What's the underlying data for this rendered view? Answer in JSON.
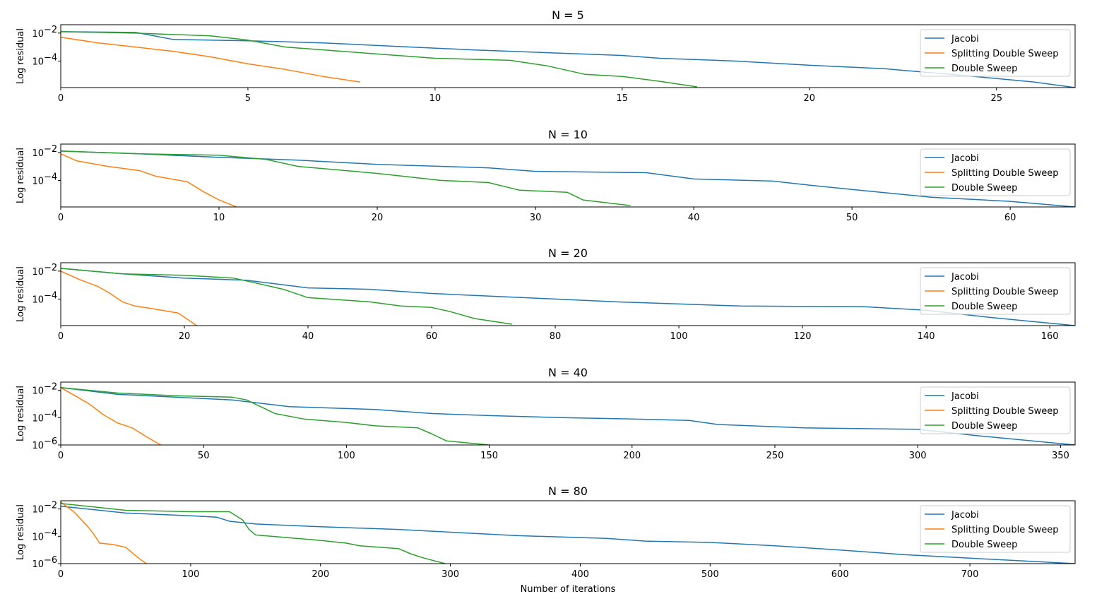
{
  "figure": {
    "xlabel": "Number of iterations",
    "ylabel": "Log residual",
    "colors": {
      "Jacobi": "#1f77b4",
      "Splitting Double Sweep": "#ff7f0e",
      "Double Sweep": "#2ca02c"
    },
    "legend_position": "top-right"
  },
  "chart_data": [
    {
      "type": "line",
      "title": "N = 5",
      "ylabel": "Log residual",
      "xlabel": "",
      "xlim": [
        0,
        27.1
      ],
      "ylim_log10": [
        -5.9,
        -1.4
      ],
      "xticks": [
        0,
        5,
        10,
        15,
        20,
        25
      ],
      "xtick_labels": [
        "0",
        "5",
        "10",
        "15",
        "20",
        "25"
      ],
      "yticks": [
        -2,
        -4
      ],
      "ytick_labels": [
        "−2",
        "−4"
      ],
      "series": [
        {
          "name": "Jacobi",
          "x": [
            0,
            2,
            3,
            5,
            7,
            9,
            11,
            13,
            15,
            16,
            18,
            20,
            22,
            24,
            26,
            27.1
          ],
          "log10_y": [
            -1.9,
            -1.95,
            -2.45,
            -2.55,
            -2.7,
            -2.95,
            -3.2,
            -3.4,
            -3.6,
            -3.8,
            -4.0,
            -4.3,
            -4.55,
            -5.0,
            -5.5,
            -5.9
          ]
        },
        {
          "name": "Splitting Double Sweep",
          "x": [
            0,
            1,
            2,
            3,
            4,
            5,
            6,
            7,
            8
          ],
          "log10_y": [
            -2.3,
            -2.7,
            -3.0,
            -3.3,
            -3.7,
            -4.2,
            -4.6,
            -5.1,
            -5.5
          ]
        },
        {
          "name": "Double Sweep",
          "x": [
            0,
            2,
            4,
            5,
            6,
            8,
            10,
            12,
            13,
            14,
            15,
            16,
            17
          ],
          "log10_y": [
            -1.9,
            -2.0,
            -2.2,
            -2.5,
            -3.0,
            -3.4,
            -3.8,
            -3.95,
            -4.35,
            -4.95,
            -5.1,
            -5.45,
            -5.85
          ]
        }
      ]
    },
    {
      "type": "line",
      "title": "N = 10",
      "ylabel": "Log residual",
      "xlabel": "",
      "xlim": [
        0,
        64.1
      ],
      "ylim_log10": [
        -5.9,
        -1.4
      ],
      "xticks": [
        0,
        10,
        20,
        30,
        40,
        50,
        60
      ],
      "xtick_labels": [
        "0",
        "10",
        "20",
        "30",
        "40",
        "50",
        "60"
      ],
      "yticks": [
        -2,
        -4
      ],
      "ytick_labels": [
        "−2",
        "−4"
      ],
      "series": [
        {
          "name": "Jacobi",
          "x": [
            0,
            5,
            10,
            15,
            20,
            27,
            30,
            37,
            40,
            45,
            47,
            50,
            55,
            60,
            64.1
          ],
          "log10_y": [
            -1.9,
            -2.1,
            -2.35,
            -2.55,
            -2.85,
            -3.1,
            -3.35,
            -3.45,
            -3.9,
            -4.05,
            -4.3,
            -4.65,
            -5.2,
            -5.5,
            -5.9
          ]
        },
        {
          "name": "Splitting Double Sweep",
          "x": [
            0,
            1,
            3,
            5,
            6,
            8,
            9,
            10,
            11.1
          ],
          "log10_y": [
            -2.1,
            -2.6,
            -3.0,
            -3.3,
            -3.7,
            -4.1,
            -4.8,
            -5.4,
            -5.9
          ]
        },
        {
          "name": "Double Sweep",
          "x": [
            0,
            5,
            10,
            13,
            15,
            20,
            24,
            27,
            29,
            32,
            33,
            36
          ],
          "log10_y": [
            -1.9,
            -2.1,
            -2.2,
            -2.5,
            -3.0,
            -3.5,
            -4.0,
            -4.15,
            -4.7,
            -4.85,
            -5.4,
            -5.8
          ]
        }
      ]
    },
    {
      "type": "line",
      "title": "N = 20",
      "ylabel": "Log residual",
      "xlabel": "",
      "xlim": [
        0,
        164.1
      ],
      "ylim_log10": [
        -5.9,
        -1.4
      ],
      "xticks": [
        0,
        20,
        40,
        60,
        80,
        100,
        120,
        140,
        160
      ],
      "xtick_labels": [
        "0",
        "20",
        "40",
        "60",
        "80",
        "100",
        "120",
        "140",
        "160"
      ],
      "yticks": [
        -2,
        -4
      ],
      "ytick_labels": [
        "−2",
        "−4"
      ],
      "series": [
        {
          "name": "Jacobi",
          "x": [
            0,
            10,
            20,
            30,
            40,
            50,
            60,
            70,
            80,
            90,
            110,
            130,
            140,
            150,
            164.1
          ],
          "log10_y": [
            -1.8,
            -2.2,
            -2.5,
            -2.65,
            -3.2,
            -3.3,
            -3.6,
            -3.8,
            -4.0,
            -4.2,
            -4.5,
            -4.55,
            -4.8,
            -5.3,
            -5.9
          ]
        },
        {
          "name": "Splitting Double Sweep",
          "x": [
            0,
            3,
            6,
            8,
            10,
            12,
            15,
            19,
            22
          ],
          "log10_y": [
            -2.0,
            -2.6,
            -3.1,
            -3.6,
            -4.2,
            -4.5,
            -4.7,
            -5.0,
            -5.9
          ]
        },
        {
          "name": "Double Sweep",
          "x": [
            0,
            10,
            20,
            28,
            30,
            36,
            40,
            50,
            55,
            60,
            63,
            67,
            73
          ],
          "log10_y": [
            -1.8,
            -2.2,
            -2.3,
            -2.5,
            -2.7,
            -3.3,
            -3.9,
            -4.2,
            -4.5,
            -4.6,
            -4.9,
            -5.4,
            -5.8
          ]
        }
      ]
    },
    {
      "type": "line",
      "title": "N = 40",
      "ylabel": "Log residual",
      "xlabel": "",
      "xlim": [
        0,
        355.1
      ],
      "ylim_log10": [
        -6.0,
        -1.4
      ],
      "xticks": [
        0,
        50,
        100,
        150,
        200,
        250,
        300,
        350
      ],
      "xtick_labels": [
        "0",
        "50",
        "100",
        "150",
        "200",
        "250",
        "300",
        "350"
      ],
      "yticks": [
        -2,
        -4,
        -6
      ],
      "ytick_labels": [
        "−2",
        "−4",
        "−6"
      ],
      "series": [
        {
          "name": "Jacobi",
          "x": [
            0,
            20,
            40,
            60,
            70,
            80,
            110,
            130,
            150,
            175,
            200,
            220,
            230,
            260,
            300,
            320,
            355.1
          ],
          "log10_y": [
            -1.8,
            -2.3,
            -2.5,
            -2.7,
            -2.95,
            -3.2,
            -3.4,
            -3.7,
            -3.85,
            -4.0,
            -4.1,
            -4.2,
            -4.5,
            -4.75,
            -4.85,
            -5.3,
            -6.0
          ]
        },
        {
          "name": "Splitting Double Sweep",
          "x": [
            0,
            5,
            10,
            15,
            20,
            25,
            30,
            35
          ],
          "log10_y": [
            -1.8,
            -2.4,
            -3.0,
            -3.8,
            -4.4,
            -4.75,
            -5.4,
            -6.0
          ]
        },
        {
          "name": "Double Sweep",
          "x": [
            0,
            20,
            40,
            60,
            65,
            70,
            75,
            85,
            100,
            110,
            125,
            130,
            135,
            150
          ],
          "log10_y": [
            -1.8,
            -2.2,
            -2.4,
            -2.5,
            -2.7,
            -3.2,
            -3.7,
            -4.1,
            -4.35,
            -4.6,
            -4.75,
            -5.2,
            -5.7,
            -6.0
          ]
        }
      ]
    },
    {
      "type": "line",
      "title": "N = 80",
      "ylabel": "Log residual",
      "xlabel": "Number of iterations",
      "xlim": [
        0,
        781
      ],
      "ylim_log10": [
        -6.0,
        -1.4
      ],
      "xticks": [
        0,
        100,
        200,
        300,
        400,
        500,
        600,
        700
      ],
      "xtick_labels": [
        "0",
        "100",
        "200",
        "300",
        "400",
        "500",
        "600",
        "700"
      ],
      "yticks": [
        -2,
        -4,
        -6
      ],
      "ytick_labels": [
        "−2",
        "−4",
        "−6"
      ],
      "series": [
        {
          "name": "Jacobi",
          "x": [
            0,
            50,
            100,
            120,
            130,
            150,
            200,
            260,
            300,
            350,
            420,
            450,
            500,
            550,
            600,
            650,
            700,
            781
          ],
          "log10_y": [
            -1.8,
            -2.3,
            -2.5,
            -2.6,
            -2.9,
            -3.1,
            -3.3,
            -3.5,
            -3.7,
            -3.95,
            -4.15,
            -4.35,
            -4.45,
            -4.7,
            -5.0,
            -5.35,
            -5.6,
            -6.0
          ]
        },
        {
          "name": "Splitting Double Sweep",
          "x": [
            0,
            10,
            20,
            25,
            30,
            40,
            50,
            60,
            66
          ],
          "log10_y": [
            -1.5,
            -2.2,
            -3.2,
            -3.8,
            -4.5,
            -4.6,
            -4.8,
            -5.6,
            -6.0
          ]
        },
        {
          "name": "Double Sweep",
          "x": [
            0,
            50,
            100,
            130,
            140,
            145,
            150,
            200,
            220,
            230,
            260,
            270,
            280,
            296
          ],
          "log10_y": [
            -1.6,
            -2.1,
            -2.2,
            -2.2,
            -2.8,
            -3.5,
            -3.9,
            -4.3,
            -4.5,
            -4.7,
            -4.9,
            -5.3,
            -5.6,
            -6.0
          ]
        }
      ]
    }
  ]
}
